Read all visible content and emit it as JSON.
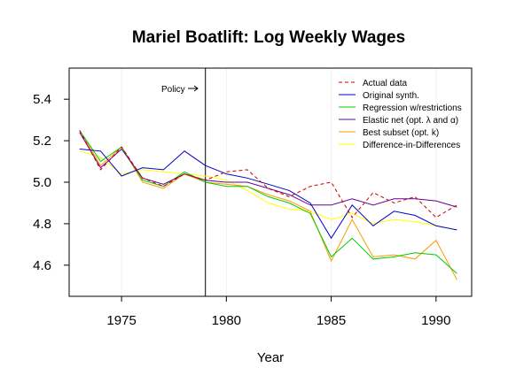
{
  "chart_data": {
    "type": "line",
    "title": "Mariel Boatlift: Log Weekly Wages",
    "xlabel": "Year",
    "ylabel": "",
    "xlim": [
      1972.5,
      1991.7
    ],
    "ylim": [
      4.45,
      5.55
    ],
    "xticks": [
      1975,
      1980,
      1985,
      1990
    ],
    "xtick_labels": [
      "1975",
      "1980",
      "1985",
      "1990"
    ],
    "yticks": [
      4.6,
      4.8,
      5.0,
      5.2,
      5.4
    ],
    "ytick_labels": [
      "4.6",
      "4.8",
      "5.0",
      "5.2",
      "5.4"
    ],
    "legend_position": "top-right",
    "grid": "faint vertical lines at x ticks",
    "annotation": {
      "label": "Policy",
      "x": 1979
    },
    "x": [
      1973,
      1974,
      1975,
      1976,
      1977,
      1978,
      1979,
      1980,
      1981,
      1982,
      1983,
      1984,
      1985,
      1986,
      1987,
      1988,
      1989,
      1990,
      1991
    ],
    "series": [
      {
        "name": "Actual data",
        "color": "#cc0000",
        "dash": true,
        "values": [
          5.25,
          5.06,
          5.17,
          5.02,
          4.98,
          5.04,
          5.01,
          5.05,
          5.06,
          4.97,
          4.93,
          4.98,
          5.0,
          4.83,
          4.95,
          4.9,
          4.93,
          4.83,
          4.89
        ]
      },
      {
        "name": "Original synth.",
        "color": "#0000cc",
        "dash": false,
        "values": [
          5.16,
          5.15,
          5.03,
          5.07,
          5.06,
          5.15,
          5.08,
          5.04,
          5.02,
          4.99,
          4.96,
          4.9,
          4.73,
          4.89,
          4.79,
          4.86,
          4.84,
          4.79,
          4.77
        ]
      },
      {
        "name": "Regression w/restrictions",
        "color": "#00cc00",
        "dash": false,
        "values": [
          5.25,
          5.1,
          5.17,
          5.01,
          4.98,
          5.05,
          5.0,
          4.98,
          4.98,
          4.93,
          4.9,
          4.85,
          4.64,
          4.73,
          4.63,
          4.64,
          4.66,
          4.65,
          4.56
        ]
      },
      {
        "name": "Elastic net (opt. λ and α)",
        "color": "#660099",
        "dash": false,
        "values": [
          5.24,
          5.07,
          5.16,
          5.02,
          4.99,
          5.04,
          5.01,
          5.0,
          5.0,
          4.97,
          4.94,
          4.89,
          4.89,
          4.92,
          4.89,
          4.92,
          4.92,
          4.91,
          4.88
        ]
      },
      {
        "name": "Best subset (opt. k)",
        "color": "#ff9900",
        "dash": false,
        "values": [
          5.25,
          5.08,
          5.17,
          5.0,
          4.97,
          5.04,
          5.0,
          4.99,
          4.98,
          4.94,
          4.91,
          4.86,
          4.62,
          4.82,
          4.64,
          4.65,
          4.63,
          4.72,
          4.53
        ]
      },
      {
        "name": "Difference-in-Differences",
        "color": "#ffff00",
        "dash": false,
        "values": [
          5.15,
          5.12,
          5.04,
          5.06,
          5.05,
          5.04,
          5.03,
          5.01,
          4.96,
          4.9,
          4.87,
          4.86,
          4.82,
          4.85,
          4.8,
          4.82,
          4.81,
          4.79,
          4.77
        ]
      }
    ]
  }
}
